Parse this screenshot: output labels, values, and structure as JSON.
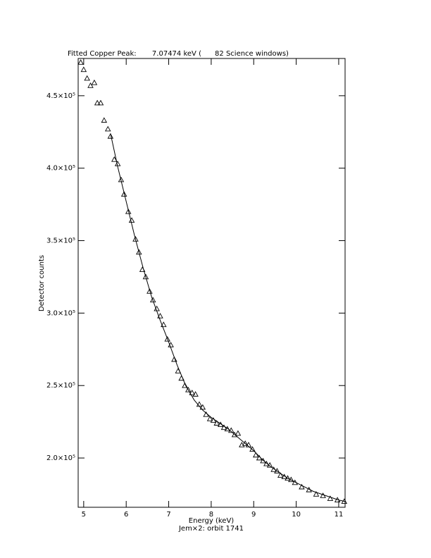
{
  "chart_data": {
    "type": "scatter",
    "title": "Fitted Copper Peak:       7.07474 keV (      82 Science windows)",
    "xlabel": "Energy (keV)",
    "subtitle": "Jem×2: orbit 1741",
    "ylabel": "Detector counts",
    "xlim": [
      4.87,
      11.15
    ],
    "ylim": [
      166000,
      475700
    ],
    "xticks": [
      5,
      6,
      7,
      8,
      9,
      10,
      11
    ],
    "yticks": [
      {
        "value": 200000,
        "label": "2.0×10⁵"
      },
      {
        "value": 250000,
        "label": "2.5×10⁵"
      },
      {
        "value": 300000,
        "label": "3.0×10⁵"
      },
      {
        "value": 350000,
        "label": "3.5×10⁵"
      },
      {
        "value": 400000,
        "label": "4.0×10⁵"
      },
      {
        "value": 450000,
        "label": "4.5×10⁵"
      }
    ],
    "series": [
      {
        "type": "scatter",
        "color": "#000000",
        "x": [
          4.93,
          5.0,
          5.08,
          5.16,
          5.25,
          5.32,
          5.4,
          5.48,
          5.57,
          5.63,
          5.72,
          5.8,
          5.88,
          5.95,
          6.05,
          6.13,
          6.22,
          6.3,
          6.38,
          6.46,
          6.55,
          6.63,
          6.72,
          6.8,
          6.88,
          6.97,
          7.05,
          7.13,
          7.22,
          7.3,
          7.38,
          7.46,
          7.55,
          7.63,
          7.72,
          7.8,
          7.88,
          7.97,
          8.05,
          8.13,
          8.22,
          8.3,
          8.38,
          8.47,
          8.55,
          8.63,
          8.72,
          8.8,
          8.88,
          8.97,
          9.05,
          9.13,
          9.22,
          9.3,
          9.38,
          9.47,
          9.55,
          9.63,
          9.72,
          9.8,
          9.88,
          9.97,
          10.13,
          10.3,
          10.47,
          10.63,
          10.8,
          10.97,
          11.13
        ],
        "values": [
          473000,
          468000,
          462000,
          457000,
          459000,
          445000,
          445000,
          433000,
          427000,
          422000,
          406000,
          403000,
          392000,
          382000,
          370000,
          364000,
          351000,
          342000,
          330000,
          325000,
          315000,
          309000,
          303000,
          298000,
          292000,
          282000,
          278000,
          268000,
          260000,
          255000,
          250000,
          247000,
          245000,
          244000,
          237000,
          235000,
          230000,
          227000,
          226000,
          224000,
          223000,
          221000,
          220000,
          219000,
          216000,
          217000,
          209000,
          210000,
          209000,
          206000,
          202000,
          200000,
          198000,
          196000,
          195000,
          192000,
          191000,
          188000,
          187000,
          186000,
          185000,
          183000,
          180000,
          178000,
          175000,
          174000,
          172000,
          171000,
          170000
        ]
      },
      {
        "type": "line",
        "color": "#000000",
        "x": [
          5.63,
          5.8,
          6.0,
          6.2,
          6.4,
          6.6,
          6.8,
          7.0,
          7.2,
          7.4,
          7.6,
          7.8,
          8.0,
          8.2,
          8.4,
          8.6,
          8.8,
          9.0,
          9.2,
          9.4,
          9.6,
          9.8,
          10.0,
          10.2,
          10.4,
          10.6,
          10.8,
          11.0,
          11.15
        ],
        "values": [
          424000,
          401000,
          377000,
          353000,
          331000,
          311000,
          295000,
          280000,
          264000,
          250000,
          240000,
          233000,
          228000,
          224000,
          220000,
          215000,
          210000,
          205000,
          199000,
          194000,
          190000,
          186000,
          183000,
          180000,
          177000,
          175000,
          173000,
          171000,
          170000
        ]
      }
    ]
  }
}
